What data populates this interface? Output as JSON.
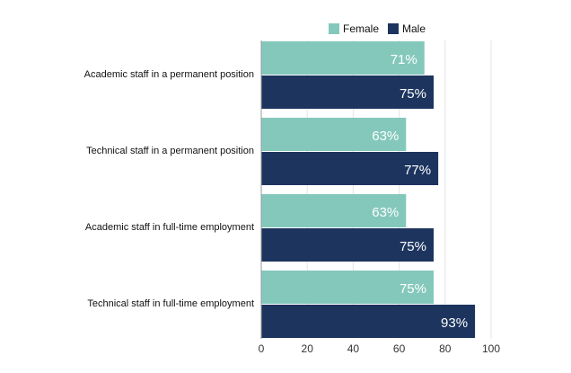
{
  "chart_data": {
    "type": "bar",
    "orientation": "horizontal",
    "categories": [
      "Academic staff in a permanent position",
      "Technical staff in a permanent position",
      "Academic staff in full-time employment",
      "Technical staff in full-time employment"
    ],
    "series": [
      {
        "name": "Female",
        "color": "#84c8bb",
        "values": [
          71,
          63,
          63,
          75
        ],
        "labels": [
          "71%",
          "63%",
          "63%",
          "75%"
        ]
      },
      {
        "name": "Male",
        "color": "#1c345e",
        "values": [
          75,
          77,
          75,
          93
        ],
        "labels": [
          "75%",
          "77%",
          "75%",
          "93%"
        ]
      }
    ],
    "xlim": [
      0,
      100
    ],
    "xticks": [
      0,
      20,
      40,
      60,
      80,
      100
    ],
    "tick_labels": [
      "0",
      "20",
      "40",
      "60",
      "80",
      "100"
    ],
    "grid": true,
    "legend_position": "top",
    "title": "",
    "xlabel": "",
    "ylabel": ""
  },
  "colors": {
    "grid": "#e3e3e3",
    "axis": "#333333",
    "label_text": "#111111",
    "data_label": "#ffffff"
  }
}
